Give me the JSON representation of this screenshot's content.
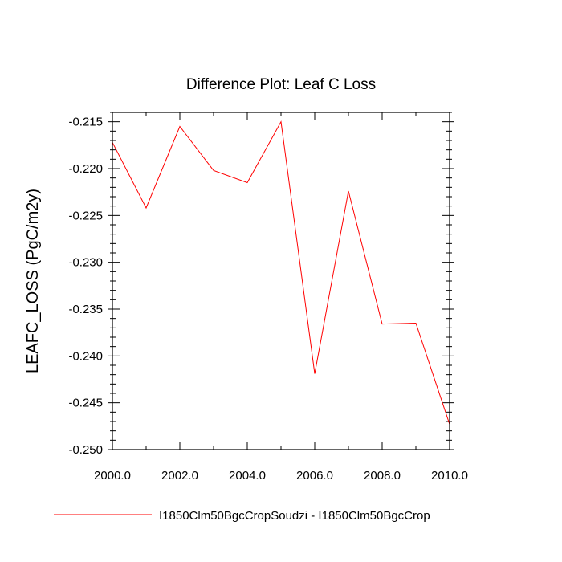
{
  "chart_data": {
    "type": "line",
    "title": "Difference Plot: Leaf C Loss",
    "xlabel": "",
    "ylabel": "LEAFC_LOSS  (PgC/m2y)",
    "xlim": [
      2000,
      2010
    ],
    "ylim": [
      -0.25,
      -0.214
    ],
    "x_ticks": [
      "2000.0",
      "2002.0",
      "2004.0",
      "2006.0",
      "2008.0",
      "2010.0"
    ],
    "y_ticks": [
      "-0.215",
      "-0.220",
      "-0.225",
      "-0.230",
      "-0.235",
      "-0.240",
      "-0.245",
      "-0.250"
    ],
    "grid": false,
    "legend_position": "bottom",
    "series": [
      {
        "name": "I1850Clm50BgcCropSoudzi - I1850Clm50BgcCrop",
        "color": "#ff0000",
        "x": [
          2000,
          2001,
          2002,
          2003,
          2004,
          2005,
          2006,
          2007,
          2008,
          2009,
          2010
        ],
        "y": [
          -0.2172,
          -0.2242,
          -0.2155,
          -0.2202,
          -0.2215,
          -0.215,
          -0.2419,
          -0.2224,
          -0.2366,
          -0.2365,
          -0.2473
        ]
      }
    ]
  }
}
